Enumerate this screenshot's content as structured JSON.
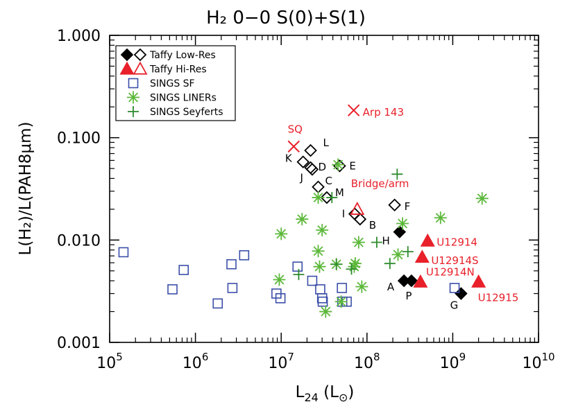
{
  "chart_data": {
    "type": "scatter",
    "title": "H₂ 0−0 S(0)+S(1)",
    "xlabel": "L24 (L⊙)",
    "ylabel": "L(H₂)/L(PAH8μm)",
    "x_scale": "log",
    "y_scale": "log",
    "xlim": [
      100000,
      10000000000
    ],
    "ylim": [
      0.001,
      1.0
    ],
    "x_ticks": [
      {
        "value": 100000,
        "base": "10",
        "exp": "5"
      },
      {
        "value": 1000000,
        "base": "10",
        "exp": "6"
      },
      {
        "value": 10000000,
        "base": "10",
        "exp": "7"
      },
      {
        "value": 100000000,
        "base": "10",
        "exp": "8"
      },
      {
        "value": 1000000000,
        "base": "10",
        "exp": "9"
      },
      {
        "value": 10000000000,
        "base": "10",
        "exp": "10"
      }
    ],
    "y_ticks": [
      {
        "value": 0.001,
        "label": "0.001"
      },
      {
        "value": 0.01,
        "label": "0.010"
      },
      {
        "value": 0.1,
        "label": "0.100"
      },
      {
        "value": 1.0,
        "label": "1.000"
      }
    ],
    "grid": false,
    "legend_position": "top-left",
    "legend": [
      {
        "label": "Taffy Low-Res",
        "symbols": [
          "diamond-filled",
          "diamond-open"
        ],
        "color": "#000000"
      },
      {
        "label": "Taffy Hi-Res",
        "symbols": [
          "triangle-filled",
          "triangle-open"
        ],
        "color": "#e8202a"
      },
      {
        "label": "SINGS SF",
        "symbols": [
          "square-open"
        ],
        "color": "#3a4ea8"
      },
      {
        "label": "SINGS LINERs",
        "symbols": [
          "asterisk"
        ],
        "color": "#5cb83a"
      },
      {
        "label": "SINGS Seyferts",
        "symbols": [
          "plus"
        ],
        "color": "#2e8b2e"
      }
    ],
    "series": [
      {
        "name": "Taffy Low-Res",
        "color": "#000000",
        "points": [
          {
            "x": 22000000,
            "y": 0.075,
            "label": "L",
            "marker": "diamond-open"
          },
          {
            "x": 18000000,
            "y": 0.058,
            "label": "K",
            "marker": "diamond-open"
          },
          {
            "x": 22000000,
            "y": 0.051,
            "label": "D",
            "marker": "diamond-open"
          },
          {
            "x": 23000000,
            "y": 0.049,
            "label": "J",
            "marker": "diamond-open"
          },
          {
            "x": 48000000,
            "y": 0.053,
            "label": "E",
            "marker": "diamond-open"
          },
          {
            "x": 27000000,
            "y": 0.033,
            "label": "C",
            "marker": "diamond-open"
          },
          {
            "x": 34000000,
            "y": 0.026,
            "label": "M",
            "marker": "diamond-open"
          },
          {
            "x": 210000000,
            "y": 0.022,
            "label": "F",
            "marker": "diamond-open"
          },
          {
            "x": 72000000,
            "y": 0.018,
            "label": "I",
            "marker": "diamond-open"
          },
          {
            "x": 83000000,
            "y": 0.016,
            "label": "B",
            "marker": "diamond-open"
          },
          {
            "x": 240000000,
            "y": 0.012,
            "label": "H",
            "marker": "diamond-filled"
          },
          {
            "x": 270000000,
            "y": 0.004,
            "label": "A",
            "marker": "diamond-filled"
          },
          {
            "x": 330000000,
            "y": 0.004,
            "label": "P",
            "marker": "diamond-filled"
          },
          {
            "x": 1250000000,
            "y": 0.003,
            "label": "G",
            "marker": "diamond-filled"
          }
        ]
      },
      {
        "name": "Taffy Hi-Res",
        "color": "#e8202a",
        "points": [
          {
            "x": 77000000,
            "y": 0.02,
            "label": "Bridge/arm",
            "marker": "triangle-open"
          },
          {
            "x": 510000000,
            "y": 0.0098,
            "label": "U12914",
            "marker": "triangle-filled"
          },
          {
            "x": 440000000,
            "y": 0.0068,
            "label": "U12914S",
            "marker": "triangle-filled"
          },
          {
            "x": 420000000,
            "y": 0.0039,
            "label": "U12914N",
            "marker": "triangle-filled"
          },
          {
            "x": 2000000000,
            "y": 0.0039,
            "label": "U12915",
            "marker": "triangle-filled"
          },
          {
            "x": 70000000,
            "y": 0.185,
            "label": "Arp 143",
            "marker": "x"
          },
          {
            "x": 14000000,
            "y": 0.082,
            "label": "SQ",
            "marker": "x"
          }
        ]
      },
      {
        "name": "SINGS SF",
        "color": "#3a4ea8",
        "points": [
          {
            "x": 145000,
            "y": 0.0076
          },
          {
            "x": 540000,
            "y": 0.0033
          },
          {
            "x": 730000,
            "y": 0.0051
          },
          {
            "x": 1820000,
            "y": 0.0024
          },
          {
            "x": 2630000,
            "y": 0.0058
          },
          {
            "x": 2700000,
            "y": 0.0034
          },
          {
            "x": 3700000,
            "y": 0.0071
          },
          {
            "x": 8800000,
            "y": 0.003
          },
          {
            "x": 9800000,
            "y": 0.0027
          },
          {
            "x": 15500000,
            "y": 0.0055
          },
          {
            "x": 23000000,
            "y": 0.004
          },
          {
            "x": 28500000,
            "y": 0.0033
          },
          {
            "x": 30000000,
            "y": 0.0027
          },
          {
            "x": 30500000,
            "y": 0.0025
          },
          {
            "x": 51000000,
            "y": 0.0034
          },
          {
            "x": 51500000,
            "y": 0.0025
          },
          {
            "x": 58000000,
            "y": 0.0025
          },
          {
            "x": 1050000000,
            "y": 0.0034
          }
        ]
      },
      {
        "name": "SINGS LINERs",
        "color": "#5cb83a",
        "points": [
          {
            "x": 10000000,
            "y": 0.0115
          },
          {
            "x": 9500000,
            "y": 0.0041
          },
          {
            "x": 17500000,
            "y": 0.016
          },
          {
            "x": 27000000,
            "y": 0.026
          },
          {
            "x": 27000000,
            "y": 0.0078
          },
          {
            "x": 30000000,
            "y": 0.0125
          },
          {
            "x": 28000000,
            "y": 0.0055
          },
          {
            "x": 33000000,
            "y": 0.002
          },
          {
            "x": 44000000,
            "y": 0.0058
          },
          {
            "x": 46000000,
            "y": 0.0545
          },
          {
            "x": 50000000,
            "y": 0.0025
          },
          {
            "x": 71000000,
            "y": 0.0055
          },
          {
            "x": 73000000,
            "y": 0.0059
          },
          {
            "x": 80000000,
            "y": 0.0095
          },
          {
            "x": 87000000,
            "y": 0.0035
          },
          {
            "x": 230000000,
            "y": 0.0072
          },
          {
            "x": 260000000,
            "y": 0.0145
          },
          {
            "x": 720000000,
            "y": 0.0165
          },
          {
            "x": 2200000000,
            "y": 0.0255
          }
        ]
      },
      {
        "name": "SINGS Seyferts",
        "color": "#2e8b2e",
        "points": [
          {
            "x": 16000000,
            "y": 0.0046
          },
          {
            "x": 39000000,
            "y": 0.026
          },
          {
            "x": 44000000,
            "y": 0.0058
          },
          {
            "x": 66000000,
            "y": 0.0052
          },
          {
            "x": 130000000,
            "y": 0.0095
          },
          {
            "x": 185000000,
            "y": 0.0059
          },
          {
            "x": 225000000,
            "y": 0.044
          },
          {
            "x": 300000000,
            "y": 0.0077
          }
        ]
      }
    ]
  }
}
